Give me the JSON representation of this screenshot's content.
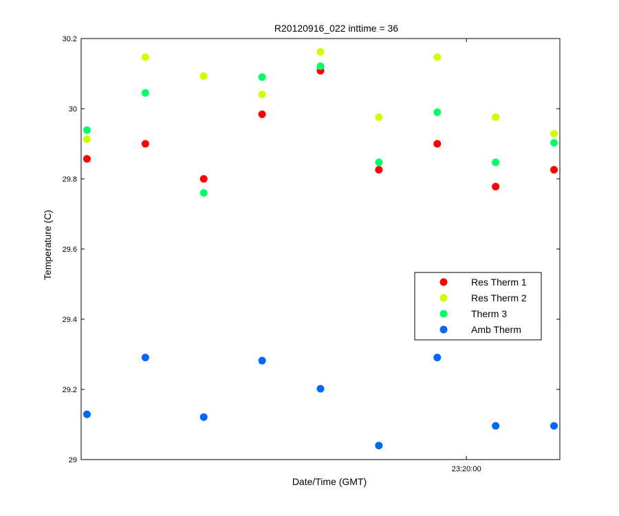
{
  "chart_data": {
    "type": "scatter",
    "title": "R20120916_022 inttime = 36",
    "xlabel": "Date/Time (GMT)",
    "ylabel": "Temperature (C)",
    "ylim": [
      29,
      30.2
    ],
    "yticks": [
      "29",
      "29.2",
      "29.4",
      "29.6",
      "29.8",
      "30",
      "30.2"
    ],
    "xtick_labels": [
      "23:20:00"
    ],
    "x": [
      0,
      1,
      2,
      3,
      4,
      5,
      6,
      7,
      8
    ],
    "xlim": [
      -0.1,
      8.1
    ],
    "xtick_positions": [
      6.5
    ],
    "legend_position": "right",
    "series": [
      {
        "name": "Res Therm 1",
        "color": "#ff0000",
        "values": [
          29.857,
          29.9,
          29.8,
          29.984,
          30.108,
          29.826,
          29.9,
          29.778,
          29.826
        ]
      },
      {
        "name": "Res Therm 2",
        "color": "#ccff00",
        "values": [
          29.913,
          30.147,
          30.093,
          30.041,
          30.162,
          29.976,
          30.147,
          29.976,
          29.929
        ]
      },
      {
        "name": "Therm 3",
        "color": "#00ff66",
        "values": [
          29.939,
          30.045,
          29.76,
          30.09,
          30.121,
          29.847,
          29.99,
          29.847,
          29.903
        ]
      },
      {
        "name": "Amb Therm",
        "color": "#0066ff",
        "values": [
          29.129,
          29.291,
          29.121,
          29.282,
          29.202,
          29.04,
          29.291,
          29.096,
          29.096
        ]
      }
    ]
  }
}
